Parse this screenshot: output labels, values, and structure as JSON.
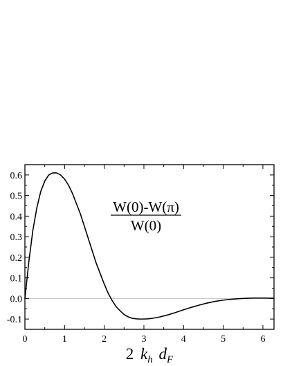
{
  "chart_data": {
    "type": "line",
    "title": "",
    "annotation": {
      "numerator": "W(0)-W(π)",
      "denominator": "W(0)"
    },
    "xlabel": {
      "coef": "2",
      "k": "k",
      "k_sub": "h",
      "d": "d",
      "d_sub": "F"
    },
    "ylabel": "",
    "xlim": [
      0,
      6.28
    ],
    "ylim": [
      -0.15,
      0.65
    ],
    "xticks": [
      0,
      1,
      2,
      3,
      4,
      5,
      6
    ],
    "yticks": [
      -0.1,
      0.0,
      0.1,
      0.2,
      0.3,
      0.4,
      0.5,
      0.6
    ],
    "ytick_labels": [
      "-0.1",
      "0.0",
      "0.1",
      "0.2",
      "0.3",
      "0.4",
      "0.5",
      "0.6"
    ],
    "reference_line_y": 0,
    "grid": false,
    "series": [
      {
        "x": [
          0,
          0.1,
          0.2,
          0.3,
          0.4,
          0.5,
          0.6,
          0.7,
          0.8,
          0.9,
          1.0,
          1.1,
          1.2,
          1.3,
          1.4,
          1.5,
          1.6,
          1.7,
          1.8,
          1.9,
          2.0,
          2.1,
          2.2,
          2.3,
          2.4,
          2.5,
          2.6,
          2.7,
          2.8,
          2.9,
          3.0,
          3.1,
          3.2,
          3.4,
          3.6,
          3.8,
          4.0,
          4.2,
          4.4,
          4.6,
          4.8,
          5.0,
          5.2,
          5.4,
          5.6,
          5.8,
          6.0,
          6.28
        ],
        "y": [
          0.0,
          0.18,
          0.33,
          0.44,
          0.52,
          0.57,
          0.6,
          0.61,
          0.61,
          0.6,
          0.58,
          0.55,
          0.51,
          0.46,
          0.41,
          0.35,
          0.29,
          0.23,
          0.17,
          0.12,
          0.07,
          0.025,
          -0.01,
          -0.04,
          -0.06,
          -0.078,
          -0.089,
          -0.096,
          -0.099,
          -0.1,
          -0.1,
          -0.099,
          -0.097,
          -0.09,
          -0.08,
          -0.068,
          -0.055,
          -0.043,
          -0.032,
          -0.022,
          -0.014,
          -0.008,
          -0.004,
          -0.001,
          0.001,
          0.002,
          0.002,
          0.001
        ]
      }
    ]
  }
}
